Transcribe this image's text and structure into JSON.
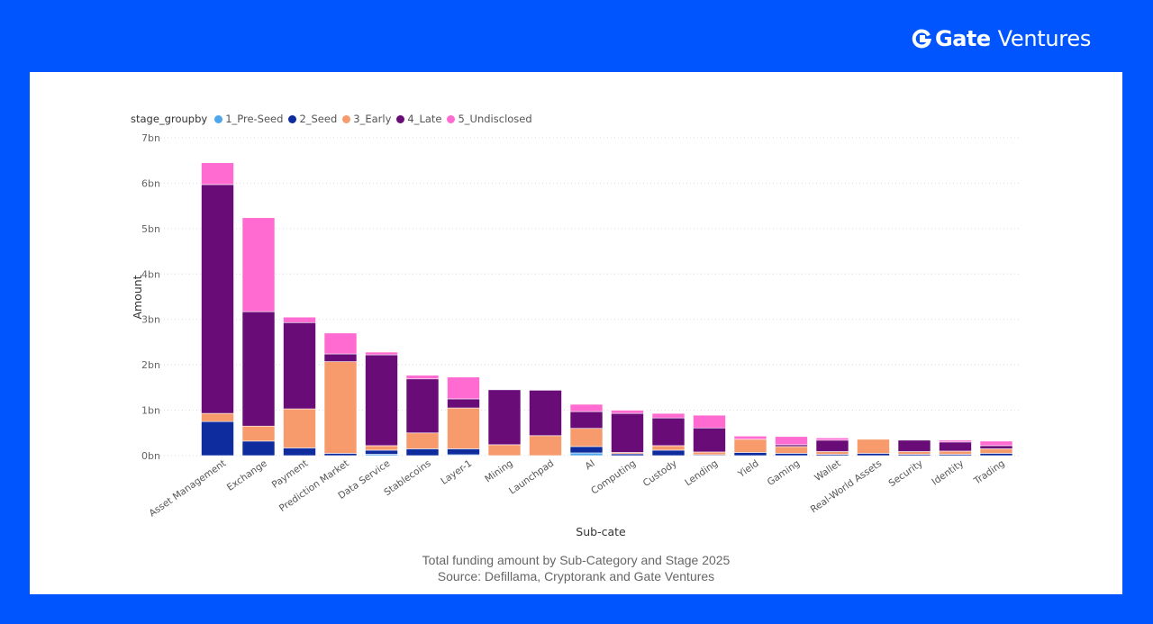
{
  "brand": {
    "name": "Gate",
    "suffix": "Ventures",
    "logo_icon": "gate-logo-icon"
  },
  "caption": {
    "line1": "Total funding amount by Sub-Category and Stage 2025",
    "line2": "Source: Defillama, Cryptorank and Gate Ventures"
  },
  "colors": {
    "background": "#0055FF",
    "card": "#FFFFFF"
  },
  "chart_data": {
    "type": "bar",
    "stacked": true,
    "title": "",
    "xlabel": "Sub-cate",
    "ylabel": "Amount",
    "ylim": [
      0,
      7
    ],
    "yticks": [
      "0bn",
      "1bn",
      "2bn",
      "3bn",
      "4bn",
      "5bn",
      "6bn",
      "7bn"
    ],
    "grid": true,
    "legend_title": "stage_groupby",
    "legend_position": "top-left",
    "categories": [
      "Asset Management",
      "Exchange",
      "Payment",
      "Prediction Market",
      "Data Service",
      "Stablecoins",
      "Layer-1",
      "Mining",
      "Launchpad",
      "AI",
      "Computing",
      "Custody",
      "Lending",
      "Yield",
      "Gaming",
      "Wallet",
      "Real-World Assets",
      "Security",
      "Identity",
      "Trading"
    ],
    "series": [
      {
        "name": "1_Pre-Seed",
        "color": "#4EA6EC",
        "values": [
          0.0,
          0.0,
          0.0,
          0.0,
          0.03,
          0.0,
          0.02,
          0.0,
          0.0,
          0.06,
          0.0,
          0.0,
          0.0,
          0.0,
          0.0,
          0.0,
          0.0,
          0.0,
          0.0,
          0.0
        ]
      },
      {
        "name": "2_Seed",
        "color": "#0E2C9E",
        "values": [
          0.75,
          0.32,
          0.17,
          0.05,
          0.09,
          0.15,
          0.13,
          0.0,
          0.0,
          0.14,
          0.04,
          0.12,
          0.02,
          0.07,
          0.05,
          0.03,
          0.05,
          0.03,
          0.03,
          0.05
        ]
      },
      {
        "name": "3_Early",
        "color": "#F79B6C",
        "values": [
          0.18,
          0.33,
          0.86,
          2.02,
          0.1,
          0.35,
          0.9,
          0.24,
          0.44,
          0.4,
          0.03,
          0.1,
          0.06,
          0.29,
          0.15,
          0.06,
          0.31,
          0.06,
          0.07,
          0.1
        ]
      },
      {
        "name": "4_Late",
        "color": "#6A0C78",
        "values": [
          5.04,
          2.52,
          1.9,
          0.17,
          2.0,
          1.19,
          0.2,
          1.21,
          1.0,
          0.37,
          0.86,
          0.61,
          0.53,
          0.0,
          0.04,
          0.25,
          0.0,
          0.25,
          0.2,
          0.07
        ]
      },
      {
        "name": "5_Undisclosed",
        "color": "#FF6BD1",
        "values": [
          0.48,
          2.07,
          0.12,
          0.46,
          0.06,
          0.08,
          0.48,
          0.0,
          0.0,
          0.16,
          0.07,
          0.1,
          0.28,
          0.07,
          0.18,
          0.05,
          0.0,
          0.0,
          0.04,
          0.1
        ]
      }
    ]
  }
}
